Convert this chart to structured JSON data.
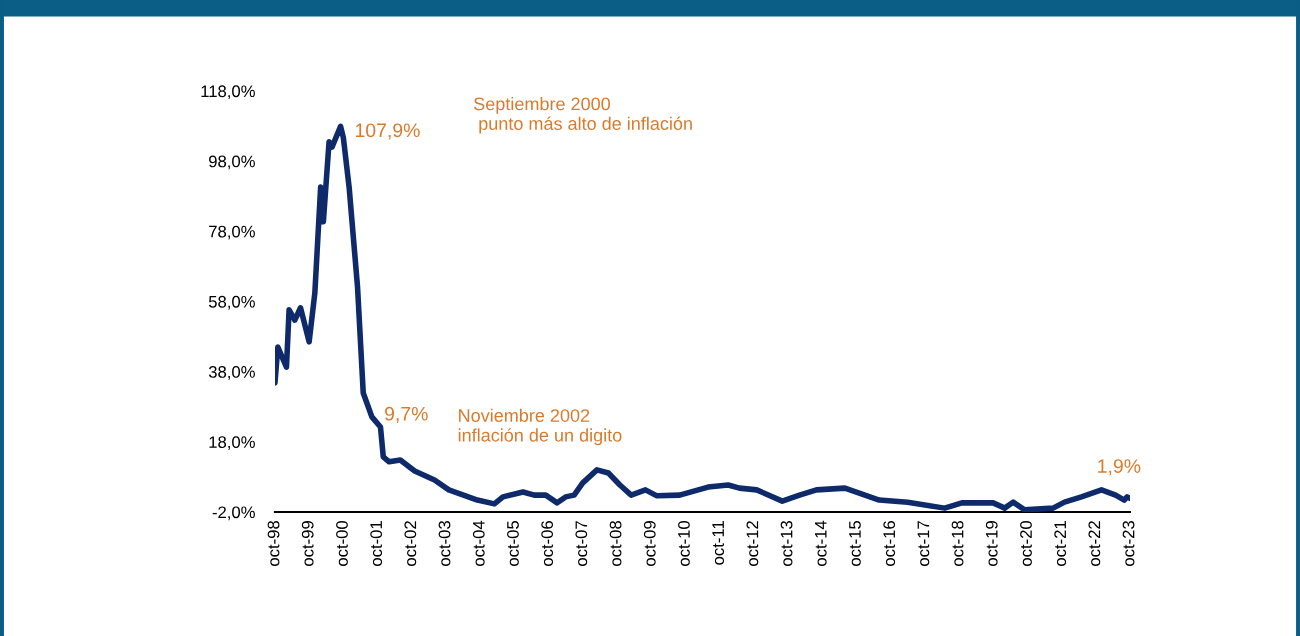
{
  "chart_data": {
    "type": "line",
    "ylim": [
      -2,
      118
    ],
    "yticks": [
      {
        "value": -2,
        "label": "-2,0%"
      },
      {
        "value": 18,
        "label": "18,0%"
      },
      {
        "value": 38,
        "label": "38,0%"
      },
      {
        "value": 58,
        "label": "58,0%"
      },
      {
        "value": 78,
        "label": "78,0%"
      },
      {
        "value": 98,
        "label": "98,0%"
      },
      {
        "value": 118,
        "label": "118,0%"
      }
    ],
    "xlim": [
      "1998-10",
      "2023-10"
    ],
    "xticks": [
      {
        "value": "1998-10",
        "label": "oct-98"
      },
      {
        "value": "1999-10",
        "label": "oct-99"
      },
      {
        "value": "2000-10",
        "label": "oct-00"
      },
      {
        "value": "2001-10",
        "label": "oct-01"
      },
      {
        "value": "2002-10",
        "label": "oct-02"
      },
      {
        "value": "2003-10",
        "label": "oct-03"
      },
      {
        "value": "2004-10",
        "label": "oct-04"
      },
      {
        "value": "2005-10",
        "label": "oct-05"
      },
      {
        "value": "2006-10",
        "label": "oct-06"
      },
      {
        "value": "2007-10",
        "label": "oct-07"
      },
      {
        "value": "2008-10",
        "label": "oct-08"
      },
      {
        "value": "2009-10",
        "label": "oct-09"
      },
      {
        "value": "2010-10",
        "label": "oct-10"
      },
      {
        "value": "2011-10",
        "label": "oct-11"
      },
      {
        "value": "2012-10",
        "label": "oct-12"
      },
      {
        "value": "2013-10",
        "label": "oct-13"
      },
      {
        "value": "2014-10",
        "label": "oct-14"
      },
      {
        "value": "2015-10",
        "label": "oct-15"
      },
      {
        "value": "2016-10",
        "label": "oct-16"
      },
      {
        "value": "2017-10",
        "label": "oct-17"
      },
      {
        "value": "2018-10",
        "label": "oct-18"
      },
      {
        "value": "2019-10",
        "label": "oct-19"
      },
      {
        "value": "2020-10",
        "label": "oct-20"
      },
      {
        "value": "2021-10",
        "label": "oct-21"
      },
      {
        "value": "2022-10",
        "label": "oct-22"
      },
      {
        "value": "2023-10",
        "label": "oct-23"
      }
    ],
    "grid": false,
    "legend": false,
    "marker": "none",
    "line_style": "solid",
    "series": [
      {
        "color": "#0f2a6b",
        "x": [
          "1998-10",
          "1998-11",
          "1999-02",
          "1999-03",
          "1999-05",
          "1999-07",
          "1999-10",
          "1999-12",
          "2000-02",
          "2000-03",
          "2000-05",
          "2000-06",
          "2000-09",
          "2000-10",
          "2000-12",
          "2001-03",
          "2001-05",
          "2001-08",
          "2001-11",
          "2001-12",
          "2002-02",
          "2002-06",
          "2002-11",
          "2003-06",
          "2003-11",
          "2004-09",
          "2005-03",
          "2005-06",
          "2006-01",
          "2006-05",
          "2006-09",
          "2007-01",
          "2007-04",
          "2007-07",
          "2007-10",
          "2008-03",
          "2008-07",
          "2008-11",
          "2009-03",
          "2009-08",
          "2009-12",
          "2010-08",
          "2011-06",
          "2012-01",
          "2012-05",
          "2012-11",
          "2013-08",
          "2014-02",
          "2014-08",
          "2015-06",
          "2016-06",
          "2017-04",
          "2018-05",
          "2018-11",
          "2019-10",
          "2020-02",
          "2020-05",
          "2020-09",
          "2021-07",
          "2021-11",
          "2022-05",
          "2022-12",
          "2023-05",
          "2023-08",
          "2023-09",
          "2023-10"
        ],
        "values": [
          34.8,
          45,
          39.3,
          55.6,
          52.7,
          56.2,
          46.5,
          60.4,
          90.6,
          80.7,
          103.5,
          102,
          107.9,
          104.6,
          90.6,
          62.1,
          31.9,
          25.1,
          22.2,
          13.7,
          12.3,
          12.8,
          9.7,
          7.1,
          4.3,
          1.4,
          0.3,
          2.3,
          3.7,
          2.8,
          2.8,
          0.6,
          2.3,
          2.8,
          6.3,
          10,
          9.1,
          5.7,
          2.8,
          4.3,
          2.6,
          2.8,
          5.1,
          5.7,
          4.8,
          4.3,
          1.1,
          2.8,
          4.3,
          4.8,
          1.4,
          0.8,
          -0.9,
          0.6,
          0.6,
          -0.9,
          0.8,
          -1.4,
          -0.9,
          0.8,
          2.3,
          4.3,
          2.8,
          1.4,
          2.3,
          1.9
        ]
      }
    ],
    "annotations": [
      {
        "text": "107,9%",
        "x": "2000-09",
        "y": 107.9
      },
      "Septiembre 2000\n punto más alto de inflación",
      {
        "text": "9,7%",
        "x": "2002-11",
        "y": 9.7
      },
      "Noviembre 2002\ninflación de un digito",
      {
        "text": "1,9%",
        "x": "2023-10",
        "y": 1.9
      }
    ]
  }
}
